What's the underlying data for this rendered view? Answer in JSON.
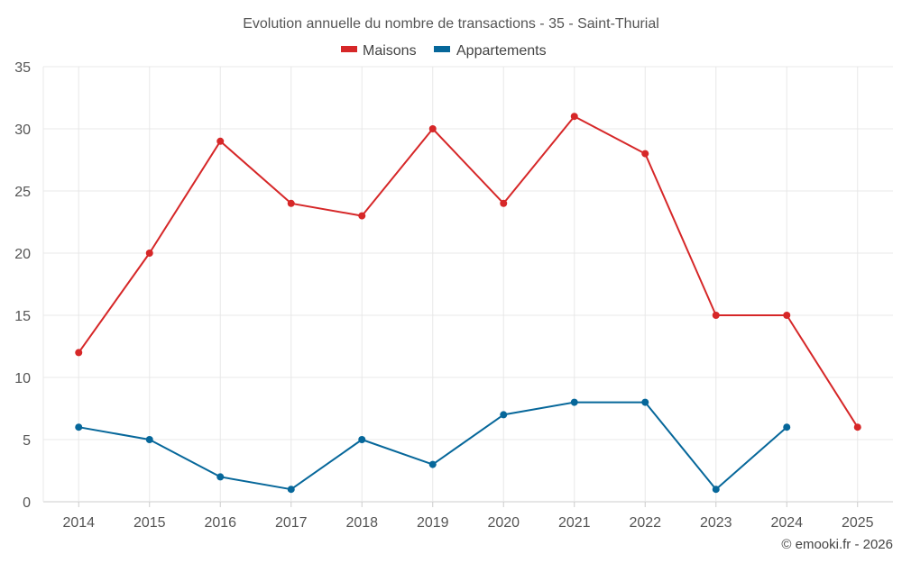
{
  "chart_data": {
    "type": "line",
    "title": "Evolution annuelle du nombre de transactions - 35 - Saint-Thurial",
    "categories": [
      "2014",
      "2015",
      "2016",
      "2017",
      "2018",
      "2019",
      "2020",
      "2021",
      "2022",
      "2023",
      "2024",
      "2025"
    ],
    "ylim": [
      0,
      35
    ],
    "yticks": [
      "0",
      "5",
      "10",
      "15",
      "20",
      "25",
      "30",
      "35"
    ],
    "grid": true,
    "legend_position": "top-center",
    "series": [
      {
        "name": "Maisons",
        "color": "#d62728",
        "values": [
          12,
          20,
          29,
          24,
          23,
          30,
          24,
          31,
          28,
          15,
          15,
          6
        ]
      },
      {
        "name": "Appartements",
        "color": "#06679a",
        "values": [
          6,
          5,
          2,
          1,
          5,
          3,
          7,
          8,
          8,
          1,
          6,
          null
        ]
      }
    ],
    "xlabel": "",
    "ylabel": ""
  },
  "footer": {
    "credit": "© emooki.fr - 2026"
  }
}
